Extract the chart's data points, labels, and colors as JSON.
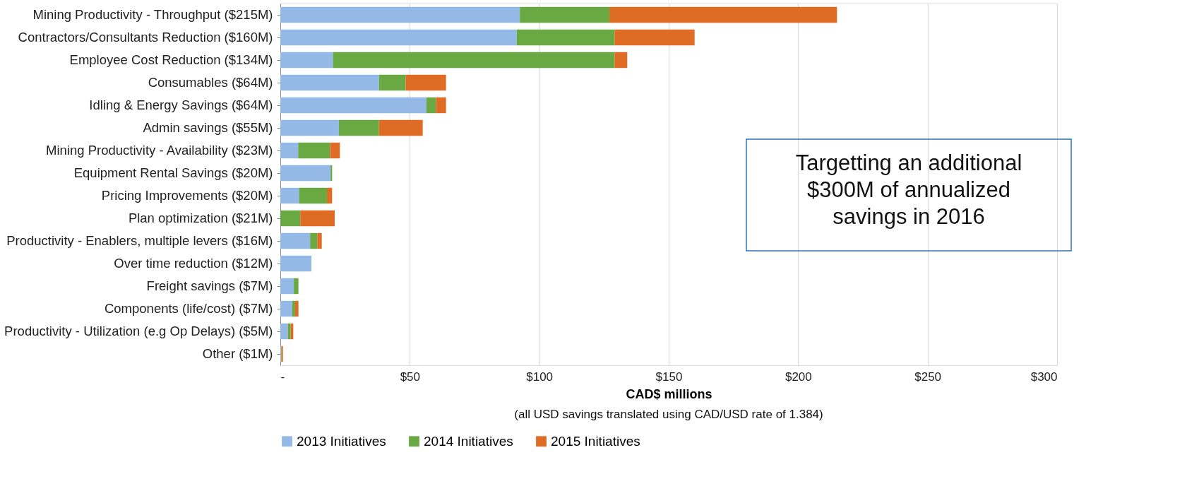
{
  "chart_data": {
    "type": "bar",
    "orientation": "horizontal",
    "stacked": true,
    "categories": [
      "Mining Productivity - Throughput ($215M)",
      "Contractors/Consultants Reduction ($160M)",
      "Employee Cost Reduction ($134M)",
      "Consumables ($64M)",
      "Idling & Energy Savings ($64M)",
      "Admin savings ($55M)",
      "Mining Productivity  - Availability ($23M)",
      "Equipment Rental Savings ($20M)",
      "Pricing Improvements ($20M)",
      "Plan optimization ($21M)",
      "Productivity - Enablers, multiple levers ($16M)",
      "Over time reduction ($12M)",
      "Freight savings ($7M)",
      "Components (life/cost) ($7M)",
      "Productivity - Utilization (e.g Op Delays) ($5M)",
      "Other ($1M)"
    ],
    "series": [
      {
        "name": "2013 Initiatives",
        "color": "#95b9e6",
        "values": [
          92.5,
          91.3,
          20.3,
          38.1,
          56.4,
          22.6,
          6.9,
          19.4,
          7.2,
          0,
          11.5,
          12,
          5.2,
          4.6,
          2.9,
          0.3
        ]
      },
      {
        "name": "2014 Initiatives",
        "color": "#6aa843",
        "values": [
          34.6,
          37.8,
          108.8,
          10.3,
          3.7,
          15.5,
          12.3,
          0.6,
          10.8,
          7.7,
          2.8,
          0,
          1.8,
          1.1,
          1.1,
          0.2
        ]
      },
      {
        "name": "2015 Initiatives",
        "color": "#de6c24",
        "values": [
          87.9,
          30.9,
          4.9,
          15.6,
          3.9,
          16.9,
          3.8,
          0,
          2,
          13.3,
          1.7,
          0,
          0,
          1.3,
          1,
          0.5
        ]
      }
    ],
    "xlim": [
      0,
      300
    ],
    "xticks": [
      {
        "value": 0,
        "label": "-"
      },
      {
        "value": 50,
        "label": "$50"
      },
      {
        "value": 100,
        "label": "$100"
      },
      {
        "value": 150,
        "label": "$150"
      },
      {
        "value": 200,
        "label": "$200"
      },
      {
        "value": 250,
        "label": "$250"
      },
      {
        "value": 300,
        "label": "$300"
      }
    ],
    "xlabel": "CAD$ millions",
    "annotations": [
      "Targetting an additional\n$300M of annualized\nsavings in 2016",
      "(all USD savings translated using CAD/USD rate of 1.384)"
    ],
    "grid": "x",
    "legend": "bottom"
  }
}
